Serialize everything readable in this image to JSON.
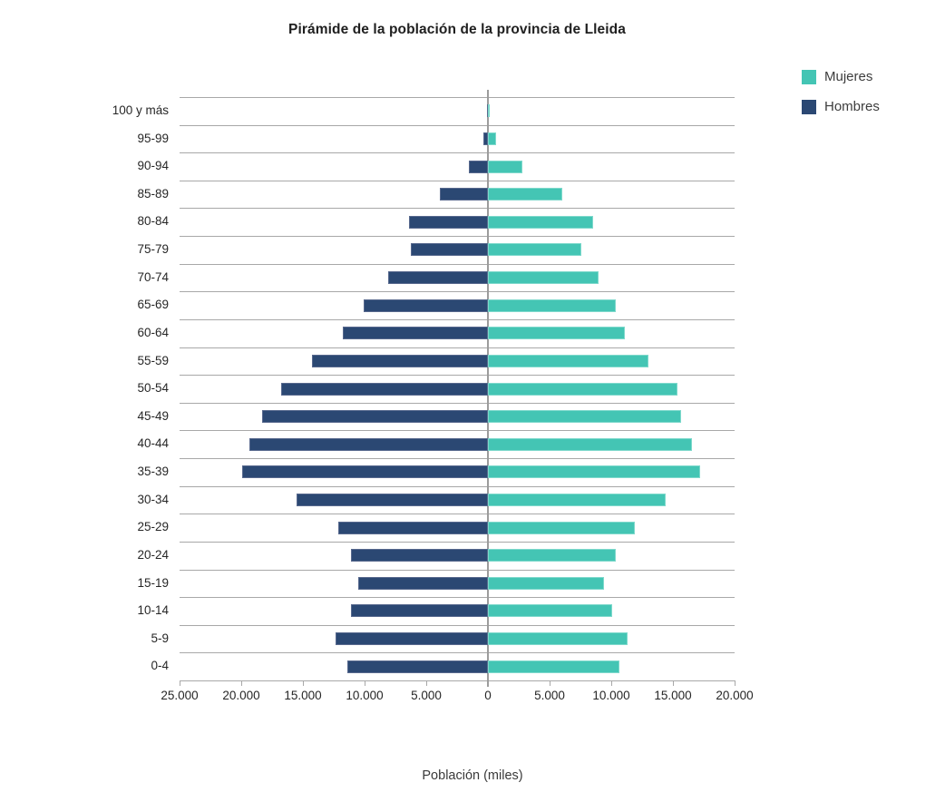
{
  "chart": {
    "title": "Pirámide de la población de la provincia de Lleida",
    "xlabel": "Población (miles)"
  },
  "legend": [
    {
      "label": "Mujeres",
      "color": "#44c5b4"
    },
    {
      "label": "Hombres",
      "color": "#2b4873"
    }
  ],
  "colors": {
    "mujeres": "#44c5b4",
    "hombres": "#2b4873",
    "gridline": "#a8a8a8",
    "zero_line": "#9c9c9c",
    "text": "#262626"
  },
  "chart_data": {
    "type": "bar",
    "subtype": "population-pyramid-horizontal",
    "title": "Pirámide de la población de la provincia de Lleida",
    "xlabel": "Población (miles)",
    "categories": [
      "100 y más",
      "95-99",
      "90-94",
      "85-89",
      "80-84",
      "75-79",
      "70-74",
      "65-69",
      "60-64",
      "55-59",
      "50-54",
      "45-49",
      "40-44",
      "35-39",
      "30-34",
      "25-29",
      "20-24",
      "15-19",
      "10-14",
      "5-9",
      "0-4"
    ],
    "categories_order": "top-to-bottom",
    "series": [
      {
        "name": "Mujeres",
        "side": "right",
        "color": "#44c5b4",
        "values": [
          150,
          650,
          2800,
          6000,
          8550,
          7600,
          9000,
          10400,
          11100,
          13000,
          15400,
          15650,
          16550,
          17200,
          14400,
          11900,
          10400,
          9400,
          10100,
          11300,
          10650
        ]
      },
      {
        "name": "Hombres",
        "side": "left",
        "color": "#2b4873",
        "values": [
          50,
          400,
          1550,
          3900,
          6400,
          6250,
          8100,
          10050,
          11800,
          14250,
          16800,
          18300,
          19350,
          19950,
          15550,
          12100,
          11100,
          10500,
          11100,
          12350,
          11400
        ]
      }
    ],
    "x_axis": {
      "xlim": [
        -25000,
        20000
      ],
      "tick_values": [
        -25000,
        -20000,
        -15000,
        -10000,
        -5000,
        0,
        5000,
        10000,
        15000,
        20000
      ],
      "tick_labels": [
        "25.000",
        "20.000",
        "15.000",
        "10.000",
        "5.000",
        "0",
        "5.000",
        "10.000",
        "15.000",
        "20.000"
      ],
      "note": "left side magnitudes represent Hombres"
    },
    "legend_position": "top-right",
    "grid": "horizontal row separators only"
  }
}
